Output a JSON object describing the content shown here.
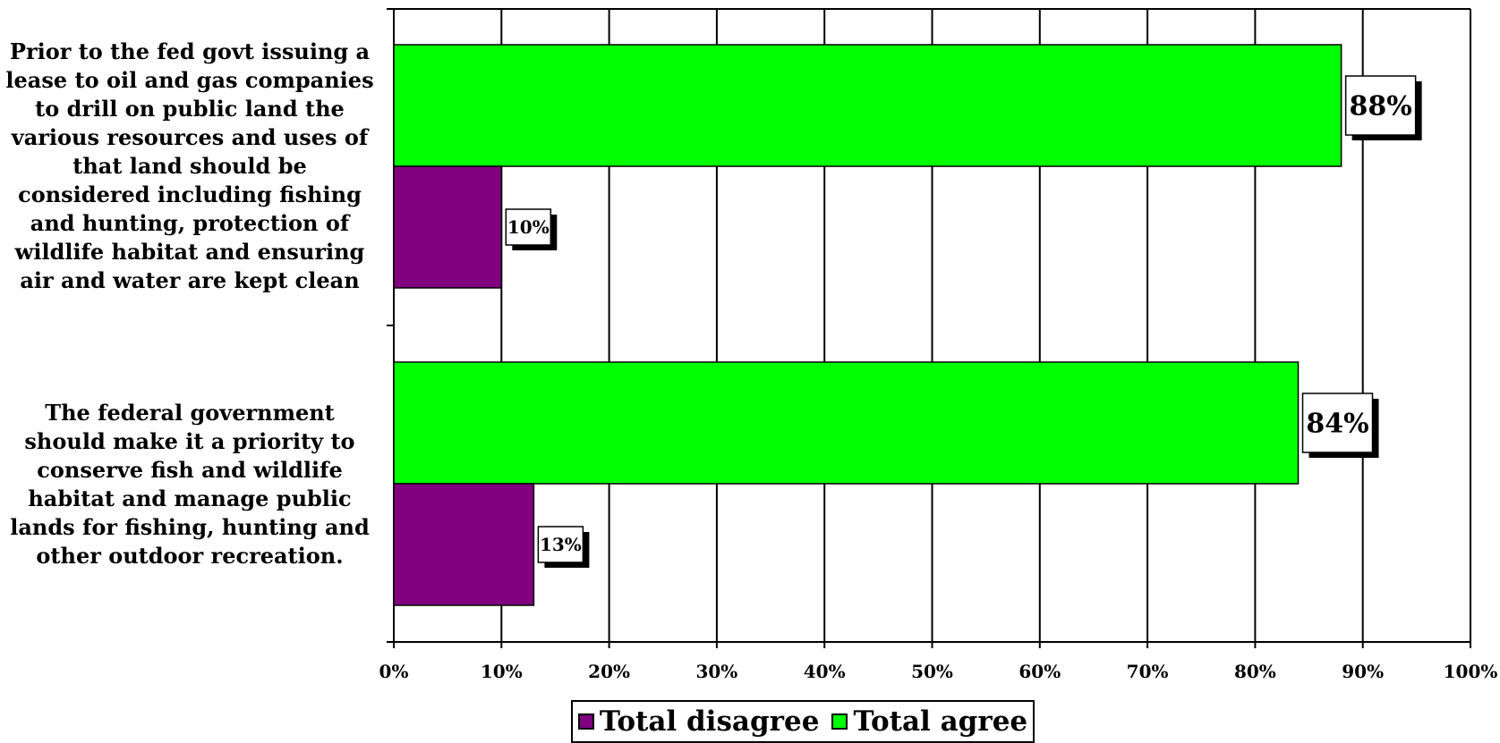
{
  "chart_data": {
    "type": "bar",
    "orientation": "horizontal",
    "categories": [
      "Prior to the fed govt issuing a lease to oil and gas companies to drill on public land the various resources and uses of that land should be considered including fishing and hunting, protection of wildlife habitat and ensuring air and water are kept clean",
      "The federal government should make it a priority to conserve fish and wildlife habitat and manage public lands for fishing, hunting and other outdoor recreation."
    ],
    "series": [
      {
        "name": "Total agree",
        "values": [
          88,
          84
        ],
        "labels": [
          "88%",
          "84%"
        ],
        "color": "#00ff00"
      },
      {
        "name": "Total disagree",
        "values": [
          10,
          13
        ],
        "labels": [
          "10%",
          "13%"
        ],
        "color": "#800080"
      }
    ],
    "xlim": [
      0,
      100
    ],
    "x_ticks": [
      "0%",
      "10%",
      "20%",
      "30%",
      "40%",
      "50%",
      "60%",
      "70%",
      "80%",
      "90%",
      "100%"
    ],
    "grid": true,
    "legend_position": "bottom",
    "legend": [
      "Total disagree",
      "Total agree"
    ],
    "title": "",
    "xlabel": "",
    "ylabel": ""
  }
}
